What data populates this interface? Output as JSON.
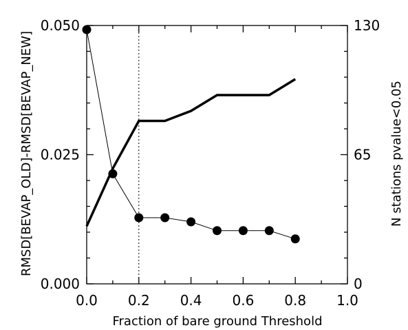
{
  "chart_data": {
    "type": "line",
    "xlabel": "Fraction of bare ground Threshold",
    "ylabel_left": "RMSD[BEVAP_OLD]-RMSD[BEVAP_NEW]",
    "ylabel_right": "N stations pvalue<0.05",
    "xlim": [
      0.0,
      1.0
    ],
    "ylim_left": [
      0.0,
      0.05
    ],
    "ylim_right": [
      0,
      130
    ],
    "x_ticks": [
      "0.0",
      "0.2",
      "0.4",
      "0.6",
      "0.8",
      "1.0"
    ],
    "y_left_ticks": [
      "0.000",
      "0.025",
      "0.050"
    ],
    "y_right_ticks": [
      "0",
      "65",
      "130"
    ],
    "reference_line_x": 0.2,
    "series": [
      {
        "axis": "left",
        "style": "thin line with filled circles",
        "x": [
          0.0,
          0.1,
          0.2,
          0.3,
          0.4,
          0.5,
          0.6,
          0.7,
          0.8
        ],
        "y": [
          0.0492,
          0.0213,
          0.0128,
          0.0128,
          0.012,
          0.0103,
          0.0103,
          0.0103,
          0.0087
        ]
      },
      {
        "axis": "right",
        "style": "thick line",
        "x": [
          0.0,
          0.1,
          0.2,
          0.3,
          0.4,
          0.5,
          0.6,
          0.7,
          0.8
        ],
        "y": [
          29,
          58,
          82,
          82,
          87,
          95,
          95,
          95,
          103
        ]
      }
    ],
    "color": "#000000"
  }
}
